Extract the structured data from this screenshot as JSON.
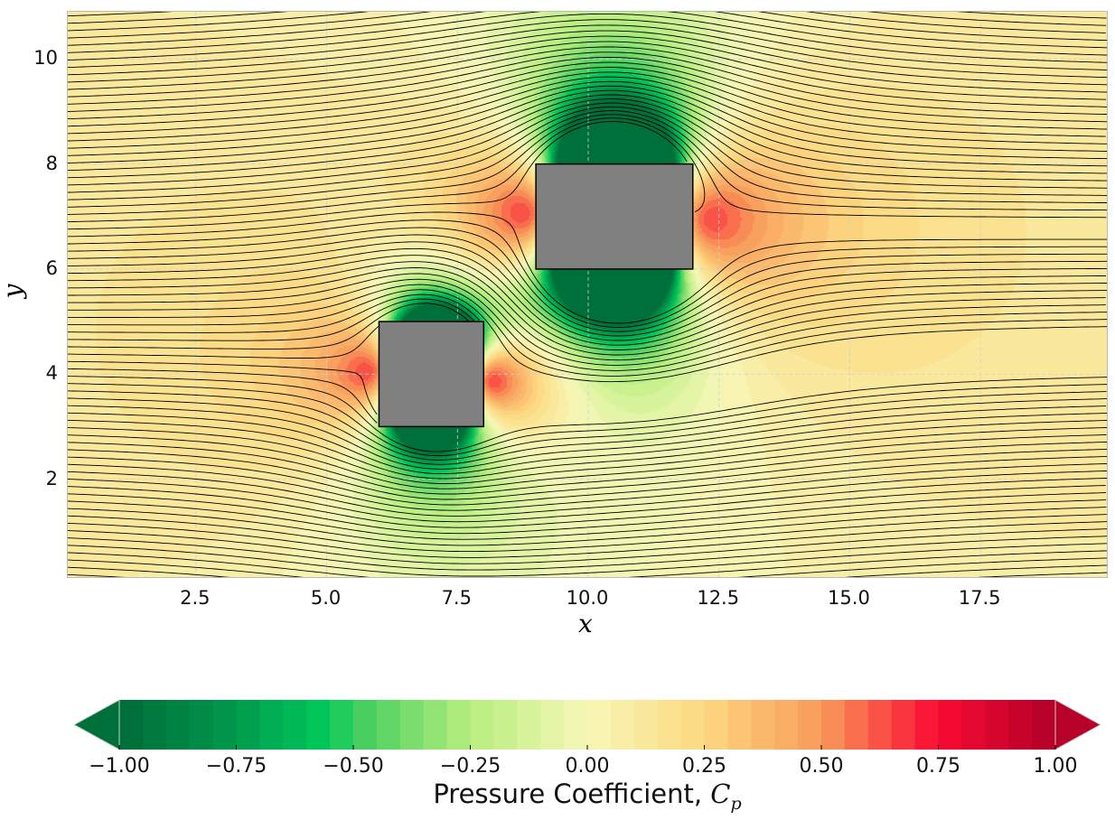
{
  "chart_data": {
    "type": "heatmap",
    "title": "",
    "xlabel": "x",
    "ylabel": "y",
    "xlim": [
      0.05,
      19.95
    ],
    "ylim": [
      0.1,
      10.9
    ],
    "xticks": [
      "2.5",
      "5.0",
      "7.5",
      "10.0",
      "12.5",
      "15.0",
      "17.5"
    ],
    "xtick_values": [
      2.5,
      5.0,
      7.5,
      10.0,
      12.5,
      15.0,
      17.5
    ],
    "yticks": [
      "2",
      "4",
      "6",
      "8",
      "10"
    ],
    "ytick_values": [
      2,
      4,
      6,
      8,
      10
    ],
    "grid": true,
    "obstacles": [
      {
        "name": "lower-block",
        "x": [
          6,
          8
        ],
        "y": [
          3,
          5
        ],
        "color": "#808080"
      },
      {
        "name": "upper-block",
        "x": [
          9,
          12
        ],
        "y": [
          6,
          8
        ],
        "color": "#808080"
      }
    ],
    "field": "Pressure coefficient Cp with streamlines around two blocks",
    "colorbar": {
      "label_text": "Pressure Coefficient, ",
      "label_symbol": "C",
      "label_sub": "p",
      "range": [
        -1.0,
        1.0
      ],
      "levels": 40,
      "extend": "both",
      "ticks": [
        "−1.00",
        "−0.75",
        "−0.50",
        "−0.25",
        "0.00",
        "0.25",
        "0.50",
        "0.75",
        "1.00"
      ],
      "tick_values": [
        -1,
        -0.75,
        -0.5,
        -0.25,
        0,
        0.25,
        0.5,
        0.75,
        1
      ],
      "colors": [
        [
          -1.0,
          "#006b38"
        ],
        [
          -0.75,
          "#009a4c"
        ],
        [
          -0.55,
          "#00cc5c"
        ],
        [
          -0.5,
          "#3dcc5c"
        ],
        [
          -0.25,
          "#b6ee7e"
        ],
        [
          0.0,
          "#f8f8b8"
        ],
        [
          0.25,
          "#fcd880"
        ],
        [
          0.5,
          "#f89a5a"
        ],
        [
          0.75,
          "#fa0a32"
        ],
        [
          1.0,
          "#b00028"
        ]
      ]
    }
  }
}
